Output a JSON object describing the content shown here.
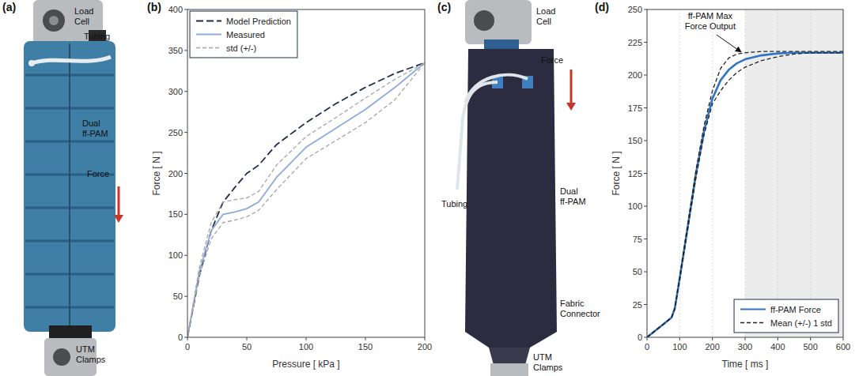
{
  "panels": [
    {
      "letter": "(a)",
      "labels": [
        {
          "text": [
            "Load",
            "Cell"
          ]
        },
        {
          "text": [
            "Tubing"
          ]
        },
        {
          "text": [
            "Dual",
            "ff-PAM"
          ]
        },
        {
          "text": [
            "Force"
          ]
        },
        {
          "text": [
            "UTM",
            "Clamps"
          ]
        }
      ]
    },
    {
      "letter": "(c)",
      "labels": [
        {
          "text": [
            "Load",
            "Cell"
          ]
        },
        {
          "text": [
            "Force"
          ]
        },
        {
          "text": [
            "Tubing"
          ]
        },
        {
          "text": [
            "Dual",
            "ff-PAM"
          ]
        },
        {
          "text": [
            "Fabric",
            "Connector"
          ]
        },
        {
          "text": [
            "UTM",
            "Clamps"
          ]
        }
      ]
    }
  ],
  "chart_data": [
    {
      "type": "line",
      "panel": "(b)",
      "x_label": "Pressure [ kPa ]",
      "y_label": "Force [ N ]",
      "x": [
        0,
        10,
        20,
        30,
        40,
        50,
        60,
        75,
        100,
        125,
        150,
        175,
        200
      ],
      "xlim": [
        0,
        200
      ],
      "xticks": [
        0,
        50,
        100,
        150,
        200
      ],
      "ylim": [
        0,
        400
      ],
      "yticks": [
        0,
        50,
        100,
        150,
        200,
        250,
        300,
        350,
        400
      ],
      "grid": false,
      "legend": "upper left",
      "series": [
        {
          "name": "Model Prediction",
          "color": "#1f2d4d",
          "line_style": "long-dashed",
          "values": [
            0,
            75,
            130,
            165,
            183,
            200,
            210,
            235,
            262,
            285,
            305,
            322,
            335
          ]
        },
        {
          "name": "Measured",
          "color": "#8eaadb",
          "line_style": "solid",
          "values": [
            0,
            80,
            130,
            150,
            153,
            157,
            165,
            195,
            232,
            255,
            278,
            305,
            335
          ]
        },
        {
          "name": "std (+/-)",
          "color": "#a6a6a6",
          "line_style": "dashed",
          "upper": [
            0,
            85,
            140,
            165,
            168,
            170,
            178,
            210,
            245,
            268,
            292,
            315,
            335
          ],
          "lower": [
            0,
            75,
            120,
            140,
            143,
            147,
            155,
            180,
            218,
            240,
            262,
            290,
            335
          ]
        }
      ]
    },
    {
      "type": "line",
      "panel": "(d)",
      "x_label": "Time [ ms ]",
      "y_label": "Force [ N ]",
      "x": [
        0,
        25,
        50,
        75,
        85,
        100,
        125,
        150,
        175,
        200,
        225,
        250,
        275,
        300,
        350,
        400,
        450,
        500,
        550,
        600
      ],
      "xlim": [
        0,
        600
      ],
      "xticks": [
        0,
        100,
        200,
        300,
        400,
        500,
        600
      ],
      "ylim": [
        0,
        250
      ],
      "yticks": [
        0,
        25,
        50,
        75,
        100,
        125,
        150,
        175,
        200,
        225,
        250
      ],
      "grid": "x",
      "legend": "lower right",
      "shaded_region": [
        300,
        600
      ],
      "annotations": [
        {
          "text": [
            "ff-PAM Max",
            "Force Output"
          ],
          "x": 290,
          "y": 217
        }
      ],
      "series": [
        {
          "name": "ff-PAM Force",
          "color": "#2e75c6",
          "line_style": "solid",
          "values": [
            0,
            5,
            10,
            15,
            22,
            45,
            85,
            125,
            158,
            182,
            196,
            204,
            209,
            212,
            215,
            216.5,
            217,
            217,
            217,
            217
          ]
        },
        {
          "name": "Mean (+/-) 1 std",
          "color": "#222222",
          "line_style": "dashed",
          "upper": [
            0,
            5,
            10,
            15,
            22,
            46,
            87,
            128,
            162,
            188,
            205,
            213,
            216,
            217,
            218,
            218,
            218,
            218,
            218,
            218
          ],
          "lower": [
            0,
            5,
            10,
            15,
            22,
            44,
            83,
            122,
            155,
            178,
            188,
            196,
            202,
            206,
            211,
            214,
            216,
            217,
            217,
            217
          ]
        }
      ]
    }
  ]
}
